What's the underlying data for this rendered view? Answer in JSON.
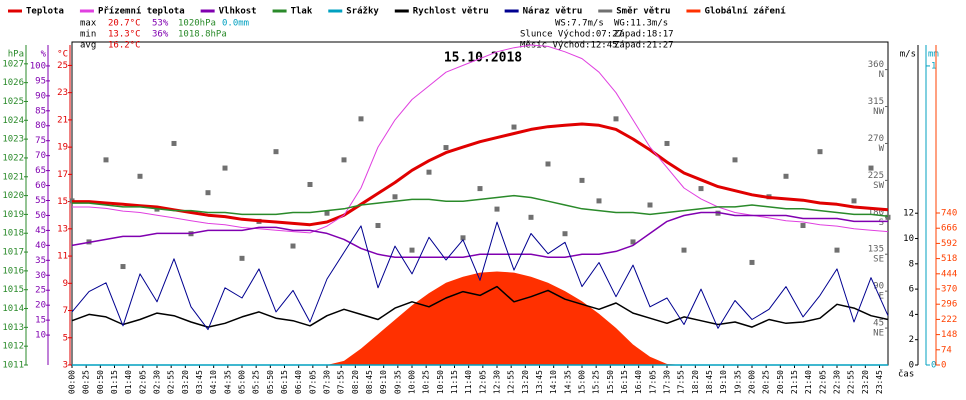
{
  "chart_data": {
    "type": "line",
    "title": "15.10.2018",
    "xlabel": "čas",
    "xlim": [
      0,
      1440
    ],
    "xticks": [
      {
        "value": 0,
        "label": "00:00"
      },
      {
        "value": 25,
        "label": "00:25"
      },
      {
        "value": 50,
        "label": "00:50"
      },
      {
        "value": 75,
        "label": "01:15"
      },
      {
        "value": 100,
        "label": "01:40"
      },
      {
        "value": 125,
        "label": "02:05"
      },
      {
        "value": 150,
        "label": "02:30"
      },
      {
        "value": 175,
        "label": "02:55"
      },
      {
        "value": 200,
        "label": "03:20"
      },
      {
        "value": 225,
        "label": "03:45"
      },
      {
        "value": 250,
        "label": "04:10"
      },
      {
        "value": 275,
        "label": "04:35"
      },
      {
        "value": 300,
        "label": "05:00"
      },
      {
        "value": 325,
        "label": "05:25"
      },
      {
        "value": 350,
        "label": "05:50"
      },
      {
        "value": 375,
        "label": "06:15"
      },
      {
        "value": 400,
        "label": "06:40"
      },
      {
        "value": 425,
        "label": "07:05"
      },
      {
        "value": 450,
        "label": "07:30"
      },
      {
        "value": 475,
        "label": "07:55"
      },
      {
        "value": 500,
        "label": "08:20"
      },
      {
        "value": 525,
        "label": "08:45"
      },
      {
        "value": 550,
        "label": "09:10"
      },
      {
        "value": 575,
        "label": "09:35"
      },
      {
        "value": 600,
        "label": "10:00"
      },
      {
        "value": 625,
        "label": "10:25"
      },
      {
        "value": 650,
        "label": "10:50"
      },
      {
        "value": 675,
        "label": "11:15"
      },
      {
        "value": 700,
        "label": "11:40"
      },
      {
        "value": 725,
        "label": "12:05"
      },
      {
        "value": 750,
        "label": "12:30"
      },
      {
        "value": 775,
        "label": "12:55"
      },
      {
        "value": 800,
        "label": "13:20"
      },
      {
        "value": 825,
        "label": "13:45"
      },
      {
        "value": 850,
        "label": "14:10"
      },
      {
        "value": 875,
        "label": "14:35"
      },
      {
        "value": 900,
        "label": "15:00"
      },
      {
        "value": 925,
        "label": "15:25"
      },
      {
        "value": 950,
        "label": "15:50"
      },
      {
        "value": 975,
        "label": "16:15"
      },
      {
        "value": 1000,
        "label": "16:40"
      },
      {
        "value": 1025,
        "label": "17:05"
      },
      {
        "value": 1050,
        "label": "17:30"
      },
      {
        "value": 1075,
        "label": "17:55"
      },
      {
        "value": 1100,
        "label": "18:20"
      },
      {
        "value": 1125,
        "label": "18:45"
      },
      {
        "value": 1150,
        "label": "19:10"
      },
      {
        "value": 1175,
        "label": "19:35"
      },
      {
        "value": 1200,
        "label": "20:00"
      },
      {
        "value": 1225,
        "label": "20:25"
      },
      {
        "value": 1250,
        "label": "20:50"
      },
      {
        "value": 1275,
        "label": "21:15"
      },
      {
        "value": 1300,
        "label": "21:40"
      },
      {
        "value": 1325,
        "label": "22:05"
      },
      {
        "value": 1350,
        "label": "22:30"
      },
      {
        "value": 1375,
        "label": "22:55"
      },
      {
        "value": 1400,
        "label": "23:20"
      },
      {
        "value": 1425,
        "label": "23:45"
      }
    ],
    "x": [
      0,
      30,
      60,
      90,
      120,
      150,
      180,
      210,
      240,
      270,
      300,
      330,
      360,
      390,
      420,
      450,
      480,
      510,
      540,
      570,
      600,
      630,
      660,
      690,
      720,
      750,
      780,
      810,
      840,
      870,
      900,
      930,
      960,
      990,
      1020,
      1050,
      1080,
      1110,
      1140,
      1170,
      1200,
      1230,
      1260,
      1290,
      1320,
      1350,
      1380,
      1410,
      1440
    ],
    "axes": [
      {
        "label": "hPa",
        "side": "left",
        "color": "#2a8a2a",
        "lim": [
          1011,
          1028
        ],
        "ticks": [
          1011,
          1012,
          1013,
          1014,
          1015,
          1016,
          1017,
          1018,
          1019,
          1020,
          1021,
          1022,
          1023,
          1024,
          1025,
          1026,
          1027
        ]
      },
      {
        "label": "%",
        "side": "left",
        "color": "#8000b0",
        "lim": [
          0,
          107
        ],
        "ticks": [
          10,
          15,
          20,
          25,
          30,
          35,
          40,
          45,
          50,
          55,
          60,
          65,
          70,
          75,
          80,
          85,
          90,
          95,
          100
        ]
      },
      {
        "label": "°C",
        "side": "left",
        "color": "#e00000",
        "lim": [
          3,
          26.5
        ],
        "ticks": [
          3,
          5,
          7,
          9,
          11,
          13,
          15,
          17,
          19,
          21,
          23,
          25
        ]
      },
      {
        "label": "m/s",
        "side": "right",
        "color": "#000000",
        "lim": [
          0,
          25.3
        ],
        "ticks": [
          0,
          2,
          4,
          6,
          8,
          10,
          12
        ]
      },
      {
        "label": "mm",
        "side": "right",
        "color": "#00a0c0",
        "lim": [
          0,
          1.07
        ],
        "ticks": [
          0,
          1
        ]
      },
      {
        "side": "inside",
        "color": "#606060",
        "lim": [
          0,
          390
        ],
        "ticks": [
          45,
          90,
          135,
          180,
          225,
          270,
          315,
          360
        ],
        "tick_names": [
          "NE",
          "E",
          "SE",
          "S",
          "SW",
          "W",
          "NW",
          "N"
        ]
      },
      {
        "side": "right",
        "color": "#ff4000",
        "lim": [
          0,
          1558
        ],
        "ticks": [
          0,
          74,
          148,
          222,
          296,
          370,
          444,
          518,
          592,
          666,
          740
        ]
      }
    ],
    "series": [
      {
        "name": "Teplota",
        "type": "line",
        "axis": 2,
        "color": "#e00000",
        "width": 3,
        "values": [
          15.0,
          15.0,
          14.9,
          14.8,
          14.7,
          14.6,
          14.4,
          14.2,
          14.0,
          13.9,
          13.7,
          13.6,
          13.5,
          13.4,
          13.3,
          13.5,
          14.0,
          14.8,
          15.6,
          16.4,
          17.3,
          18.0,
          18.6,
          19.0,
          19.4,
          19.7,
          20.0,
          20.3,
          20.5,
          20.6,
          20.7,
          20.6,
          20.3,
          19.6,
          18.8,
          17.9,
          17.1,
          16.6,
          16.1,
          15.8,
          15.5,
          15.3,
          15.2,
          15.1,
          14.9,
          14.8,
          14.6,
          14.5,
          14.4
        ]
      },
      {
        "name": "Přízemní teplota",
        "type": "line",
        "axis": 2,
        "color": "#e040e0",
        "width": 1,
        "values": [
          14.6,
          14.6,
          14.5,
          14.3,
          14.2,
          14.0,
          13.8,
          13.6,
          13.4,
          13.3,
          13.1,
          13.0,
          12.9,
          12.8,
          12.7,
          13.2,
          14.0,
          16.0,
          19.0,
          21.0,
          22.5,
          23.5,
          24.5,
          25.0,
          25.5,
          26.0,
          26.3,
          26.5,
          26.4,
          26.0,
          25.5,
          24.5,
          23.0,
          21.0,
          19.0,
          17.5,
          16.0,
          15.2,
          14.6,
          14.2,
          14.0,
          13.8,
          13.6,
          13.5,
          13.3,
          13.2,
          13.0,
          12.9,
          12.8
        ]
      },
      {
        "name": "Vlhkost",
        "type": "line",
        "axis": 1,
        "color": "#8000b0",
        "width": 1.5,
        "values": [
          40,
          41,
          42,
          43,
          43,
          44,
          44,
          44,
          45,
          45,
          45,
          46,
          46,
          45,
          45,
          44,
          42,
          39,
          37,
          36,
          36,
          36,
          36,
          36,
          37,
          37,
          37,
          37,
          36,
          36,
          37,
          37,
          38,
          40,
          44,
          48,
          50,
          51,
          51,
          50,
          50,
          50,
          50,
          49,
          49,
          49,
          48,
          48,
          48
        ]
      },
      {
        "name": "Tlak",
        "type": "line",
        "axis": 0,
        "color": "#2a8a2a",
        "width": 1.5,
        "values": [
          1019.6,
          1019.6,
          1019.5,
          1019.4,
          1019.4,
          1019.3,
          1019.2,
          1019.2,
          1019.1,
          1019.1,
          1019.0,
          1019.0,
          1019.0,
          1019.1,
          1019.1,
          1019.2,
          1019.3,
          1019.5,
          1019.6,
          1019.7,
          1019.8,
          1019.8,
          1019.7,
          1019.7,
          1019.8,
          1019.9,
          1020.0,
          1019.9,
          1019.7,
          1019.5,
          1019.3,
          1019.2,
          1019.1,
          1019.1,
          1019.0,
          1019.1,
          1019.2,
          1019.3,
          1019.4,
          1019.4,
          1019.5,
          1019.4,
          1019.3,
          1019.3,
          1019.2,
          1019.1,
          1019.0,
          1019.0,
          1018.9
        ]
      },
      {
        "name": "Srážky",
        "type": "line",
        "axis": 4,
        "color": "#00a0c0",
        "width": 1.5,
        "values": [
          0,
          0,
          0,
          0,
          0,
          0,
          0,
          0,
          0,
          0,
          0,
          0,
          0,
          0,
          0,
          0,
          0,
          0,
          0,
          0,
          0,
          0,
          0,
          0,
          0,
          0,
          0,
          0,
          0,
          0,
          0,
          0,
          0,
          0,
          0,
          0,
          0,
          0,
          0,
          0,
          0,
          0,
          0,
          0,
          0,
          0,
          0,
          0,
          0
        ]
      },
      {
        "name": "Rychlost větru",
        "type": "line",
        "axis": 3,
        "color": "#000000",
        "width": 1.5,
        "values": [
          3.5,
          4.0,
          3.8,
          3.2,
          3.6,
          4.1,
          3.9,
          3.4,
          3.0,
          3.3,
          3.8,
          4.2,
          3.7,
          3.5,
          3.1,
          3.9,
          4.4,
          4.0,
          3.6,
          4.5,
          5.0,
          4.6,
          5.3,
          5.8,
          5.5,
          6.2,
          5.0,
          5.4,
          5.9,
          5.2,
          4.8,
          4.4,
          4.9,
          4.1,
          3.7,
          3.3,
          3.8,
          3.5,
          3.2,
          3.4,
          3.0,
          3.6,
          3.3,
          3.4,
          3.7,
          4.8,
          4.5,
          3.9,
          3.6
        ]
      },
      {
        "name": "Náraz větru",
        "type": "line",
        "axis": 3,
        "color": "#000090",
        "width": 1,
        "values": [
          4.2,
          5.8,
          6.5,
          3.1,
          7.2,
          5.0,
          8.4,
          4.6,
          2.8,
          6.1,
          5.3,
          7.6,
          4.2,
          5.9,
          3.4,
          6.8,
          8.9,
          11.0,
          6.1,
          9.4,
          7.2,
          10.1,
          8.3,
          9.9,
          6.7,
          11.3,
          7.5,
          10.4,
          8.8,
          9.7,
          6.2,
          8.1,
          5.4,
          7.9,
          4.6,
          5.3,
          3.2,
          6.0,
          2.9,
          5.1,
          3.6,
          4.4,
          6.2,
          3.8,
          5.5,
          7.6,
          3.4,
          6.9,
          3.9
        ]
      },
      {
        "name": "Směr větru",
        "type": "scatter",
        "axis": 5,
        "color": "#707070",
        "values": [
          200,
          150,
          250,
          120,
          230,
          190,
          270,
          160,
          210,
          240,
          130,
          175,
          260,
          145,
          220,
          185,
          250,
          300,
          170,
          205,
          140,
          235,
          265,
          155,
          215,
          190,
          290,
          180,
          245,
          160,
          225,
          200,
          300,
          150,
          195,
          270,
          140,
          215,
          185,
          250,
          125,
          205,
          230,
          170,
          260,
          140,
          200,
          240,
          180
        ]
      },
      {
        "name": "Globální záření",
        "type": "area",
        "axis": 6,
        "color": "#ff3000",
        "values": [
          0,
          0,
          0,
          0,
          0,
          0,
          0,
          0,
          0,
          0,
          0,
          0,
          0,
          0,
          0,
          0,
          20,
          80,
          150,
          220,
          290,
          350,
          400,
          430,
          450,
          455,
          450,
          430,
          400,
          360,
          310,
          250,
          180,
          100,
          40,
          5,
          0,
          0,
          0,
          0,
          0,
          0,
          0,
          0,
          0,
          0,
          0,
          0,
          0
        ]
      }
    ],
    "stats": [
      [
        "max",
        "20.7°C",
        "53%",
        "1020hPa",
        "0.0mm"
      ],
      [
        "min",
        "13.3°C",
        "36%",
        "1018.8hPa"
      ],
      [
        "avg",
        "16.2°C"
      ]
    ],
    "sun_moon": [
      [
        "WS:7.7m/s",
        "WG:11.3m/s"
      ],
      [
        "Slunce Východ:07:27",
        "Západ:18:17"
      ],
      [
        "Měsíc Východ:12:45",
        "Západ:21:27"
      ]
    ]
  }
}
